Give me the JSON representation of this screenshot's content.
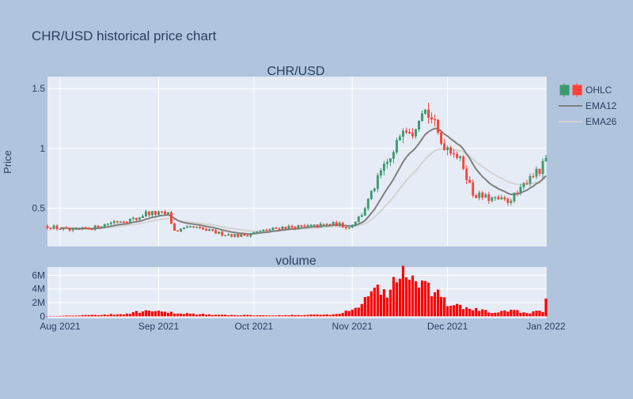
{
  "chart_data": {
    "type": "candlestick",
    "title": "CHR/USD historical price chart",
    "subplot_titles": [
      "CHR/USD",
      "volume"
    ],
    "ylabel": "Price",
    "x_start": "2021-07-28",
    "x_end": "2022-01-01",
    "x_ticks": [
      {
        "date": "2021-08-01",
        "label": "Aug 2021"
      },
      {
        "date": "2021-09-01",
        "label": "Sep 2021"
      },
      {
        "date": "2021-10-01",
        "label": "Oct 2021"
      },
      {
        "date": "2021-11-01",
        "label": "Nov 2021"
      },
      {
        "date": "2021-12-01",
        "label": "Dec 2021"
      },
      {
        "date": "2022-01-01",
        "label": "Jan 2022"
      }
    ],
    "price_ylim": [
      0.18,
      1.6
    ],
    "price_ticks": [
      {
        "v": 0.5,
        "label": "0.5"
      },
      {
        "v": 1,
        "label": "1"
      },
      {
        "v": 1.5,
        "label": "1.5"
      }
    ],
    "volume_ylim": [
      -0.3,
      7.2
    ],
    "volume_unit": "M",
    "volume_ticks": [
      {
        "v": 0,
        "label": "0"
      },
      {
        "v": 2,
        "label": "2M"
      },
      {
        "v": 4,
        "label": "4M"
      },
      {
        "v": 6,
        "label": "6M"
      }
    ],
    "legend": [
      {
        "name": "OHLC",
        "kind": "candle"
      },
      {
        "name": "EMA12",
        "kind": "line",
        "color": "#808080"
      },
      {
        "name": "EMA26",
        "kind": "line",
        "color": "#d3d3d3"
      }
    ],
    "colors": {
      "increasing": "#3d9970",
      "decreasing": "#ff4136",
      "volume": "#ff0000",
      "plot_bg": "#e5ecf6",
      "paper_bg": "#b0c4de",
      "grid": "#ffffff",
      "text": "#2a3f5f",
      "ema12": "#808080",
      "ema26": "#d3d3d3"
    },
    "close_anchors": [
      [
        "2021-07-28",
        0.35
      ],
      [
        "2021-08-05",
        0.31
      ],
      [
        "2021-08-12",
        0.34
      ],
      [
        "2021-08-18",
        0.39
      ],
      [
        "2021-08-25",
        0.41
      ],
      [
        "2021-08-28",
        0.46
      ],
      [
        "2021-09-04",
        0.45
      ],
      [
        "2021-09-06",
        0.31
      ],
      [
        "2021-09-12",
        0.34
      ],
      [
        "2021-09-20",
        0.29
      ],
      [
        "2021-09-27",
        0.27
      ],
      [
        "2021-10-02",
        0.3
      ],
      [
        "2021-10-10",
        0.34
      ],
      [
        "2021-10-20",
        0.35
      ],
      [
        "2021-10-27",
        0.37
      ],
      [
        "2021-10-31",
        0.34
      ],
      [
        "2021-11-04",
        0.45
      ],
      [
        "2021-11-07",
        0.62
      ],
      [
        "2021-11-10",
        0.8
      ],
      [
        "2021-11-14",
        0.95
      ],
      [
        "2021-11-17",
        1.2
      ],
      [
        "2021-11-20",
        1.15
      ],
      [
        "2021-11-23",
        1.35
      ],
      [
        "2021-11-26",
        1.25
      ],
      [
        "2021-11-29",
        1.05
      ],
      [
        "2021-12-03",
        0.98
      ],
      [
        "2021-12-06",
        0.85
      ],
      [
        "2021-12-09",
        0.62
      ],
      [
        "2021-12-14",
        0.58
      ],
      [
        "2021-12-20",
        0.56
      ],
      [
        "2021-12-24",
        0.65
      ],
      [
        "2021-12-27",
        0.78
      ],
      [
        "2021-12-30",
        0.8
      ],
      [
        "2022-01-01",
        0.91
      ]
    ],
    "volume_anchors": [
      [
        "2021-07-28",
        0.05
      ],
      [
        "2021-08-20",
        0.3
      ],
      [
        "2021-08-28",
        0.8
      ],
      [
        "2021-09-06",
        0.5
      ],
      [
        "2021-09-20",
        0.2
      ],
      [
        "2021-10-10",
        0.15
      ],
      [
        "2021-10-27",
        0.3
      ],
      [
        "2021-11-03",
        1.2
      ],
      [
        "2021-11-06",
        3.5
      ],
      [
        "2021-11-08",
        4.4
      ],
      [
        "2021-11-12",
        3.0
      ],
      [
        "2021-11-15",
        6.0
      ],
      [
        "2021-11-17",
        6.8
      ],
      [
        "2021-11-20",
        5.0
      ],
      [
        "2021-11-23",
        4.2
      ],
      [
        "2021-11-27",
        3.5
      ],
      [
        "2021-12-01",
        1.8
      ],
      [
        "2021-12-07",
        1.2
      ],
      [
        "2021-12-15",
        0.6
      ],
      [
        "2021-12-22",
        0.8
      ],
      [
        "2021-12-27",
        0.5
      ],
      [
        "2021-12-31",
        0.8
      ],
      [
        "2022-01-01",
        2.7
      ]
    ]
  }
}
